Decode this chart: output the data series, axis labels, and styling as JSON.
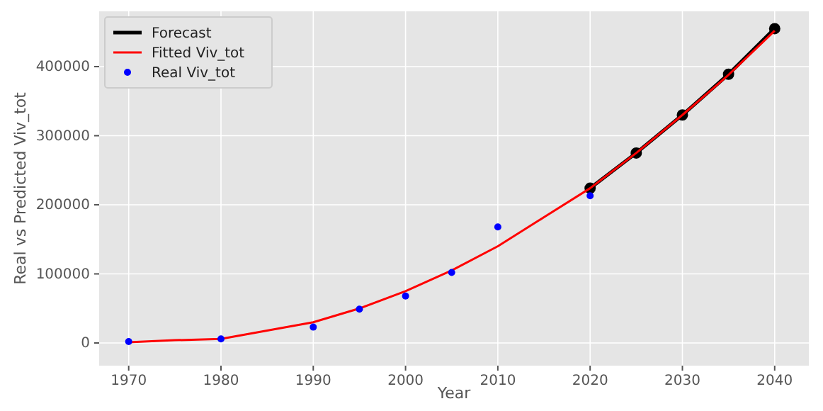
{
  "chart_data": {
    "type": "line",
    "xlabel": "Year",
    "ylabel": "Real vs Predicted Viv_tot",
    "xlim": [
      1966.8,
      2043.7
    ],
    "ylim": [
      -32800,
      480000
    ],
    "xticks": [
      1970,
      1980,
      1990,
      2000,
      2010,
      2020,
      2030,
      2040
    ],
    "yticks": [
      0,
      100000,
      200000,
      300000,
      400000
    ],
    "grid": true,
    "legend": "top left",
    "series": [
      {
        "name": "Forecast",
        "color": "#000000",
        "marker": "circle",
        "x": [
          2020,
          2025,
          2030,
          2035,
          2040
        ],
        "values": [
          224000,
          275000,
          330000,
          389000,
          455000
        ]
      },
      {
        "name": "Fitted Viv_tot",
        "color": "#ff0000",
        "marker": "none",
        "x": [
          1970,
          1975,
          1980,
          1990,
          1995,
          2000,
          2005,
          2010,
          2015,
          2020,
          2025,
          2030,
          2035,
          2040
        ],
        "values": [
          1000,
          4000,
          6000,
          30000,
          50000,
          75000,
          105000,
          140000,
          182000,
          224000,
          275000,
          330000,
          388000,
          452000
        ]
      },
      {
        "name": "Real Viv_tot",
        "type": "scatter",
        "color": "#0000ff",
        "marker": "circle",
        "x": [
          1970,
          1980,
          1990,
          1995,
          2000,
          2005,
          2010,
          2020
        ],
        "values": [
          2000,
          6000,
          23000,
          49000,
          68000,
          102000,
          168000,
          213000
        ]
      }
    ]
  }
}
